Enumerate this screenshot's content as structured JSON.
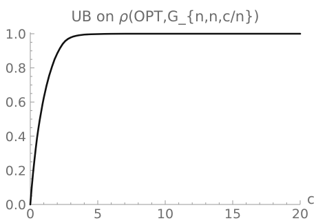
{
  "chart_data": {
    "type": "line",
    "title": "UB on ρ(OPT,G_{n,n,c/n})",
    "title_parts": {
      "prefix": "UB on ",
      "rho": "ρ",
      "suffix": "(OPT,G_{n,n,c/n})"
    },
    "xlabel": "c",
    "ylabel": "",
    "xlim": [
      0,
      20
    ],
    "ylim": [
      0,
      1
    ],
    "x_ticks": [
      0,
      5,
      10,
      15,
      20
    ],
    "x_tick_labels": [
      "0",
      "5",
      "10",
      "15",
      "20"
    ],
    "y_ticks": [
      0,
      0.2,
      0.4,
      0.6,
      0.8,
      1.0
    ],
    "y_tick_labels": [
      "0.0",
      "0.2",
      "0.4",
      "0.6",
      "0.8",
      "1.0"
    ],
    "grid": false,
    "legend": "none",
    "series": [
      {
        "color": "#111111",
        "x": [
          0,
          0.1,
          0.2,
          0.3,
          0.4,
          0.5,
          0.6,
          0.7,
          0.8,
          0.9,
          1.0,
          1.2,
          1.4,
          1.6,
          1.8,
          2.0,
          2.2,
          2.4,
          2.6,
          2.8,
          3.0,
          3.2,
          3.4,
          3.6,
          3.8,
          4.0,
          4.5,
          5.0,
          5.5,
          6.0,
          7.0,
          8.0,
          10.0,
          12.0,
          15.0,
          20.0
        ],
        "y": [
          0,
          0.095,
          0.18,
          0.255,
          0.325,
          0.39,
          0.445,
          0.495,
          0.54,
          0.585,
          0.625,
          0.695,
          0.755,
          0.805,
          0.85,
          0.885,
          0.915,
          0.94,
          0.958,
          0.97,
          0.978,
          0.984,
          0.988,
          0.991,
          0.993,
          0.995,
          0.997,
          0.998,
          0.999,
          0.9995,
          1.0,
          1.0,
          1.0,
          1.0,
          1.0,
          1.0
        ]
      }
    ]
  }
}
